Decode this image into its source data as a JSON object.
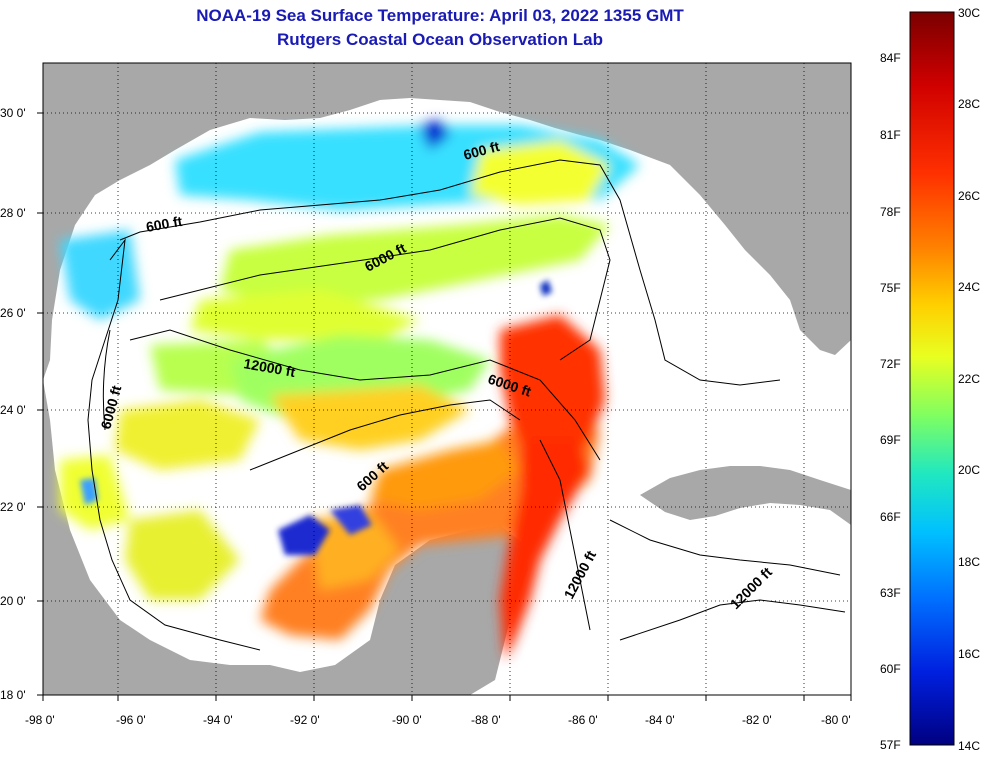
{
  "title": "NOAA-19 Sea Surface Temperature:  April 03, 2022 1355 GMT",
  "subtitle": "Rutgers Coastal Ocean Observation Lab",
  "colors": {
    "land": "#a8a8a8",
    "no_data": "#ffffff",
    "contour": "#000000",
    "title": "#1a1ab4"
  },
  "axes": {
    "x_ticks": [
      "-98 0'",
      "-96 0'",
      "-94 0'",
      "-92 0'",
      "-90 0'",
      "-88 0'",
      "-86 0'",
      "-84 0'",
      "-82 0'",
      "-80 0'"
    ],
    "y_ticks": [
      "30 0'",
      "28 0'",
      "26 0'",
      "24 0'",
      "22 0'",
      "20 0'",
      "18 0'"
    ]
  },
  "contour_labels": [
    "600 ft",
    "6000 ft",
    "12000 ft",
    "6000 ft",
    "6000 ft",
    "600 ft",
    "12000 ft",
    "12000 ft"
  ],
  "colorbar": {
    "celsius": [
      "30C",
      "28C",
      "26C",
      "24C",
      "22C",
      "20C",
      "18C",
      "16C",
      "14C"
    ],
    "fahrenheit": [
      "84F",
      "81F",
      "78F",
      "75F",
      "72F",
      "69F",
      "66F",
      "63F",
      "60F",
      "57F"
    ],
    "stops": [
      "#7a0000",
      "#d00000",
      "#ff3000",
      "#ff8000",
      "#ffd000",
      "#e8ff20",
      "#80ff60",
      "#20e8c0",
      "#00c0ff",
      "#0070ff",
      "#0020e0",
      "#000080"
    ]
  }
}
